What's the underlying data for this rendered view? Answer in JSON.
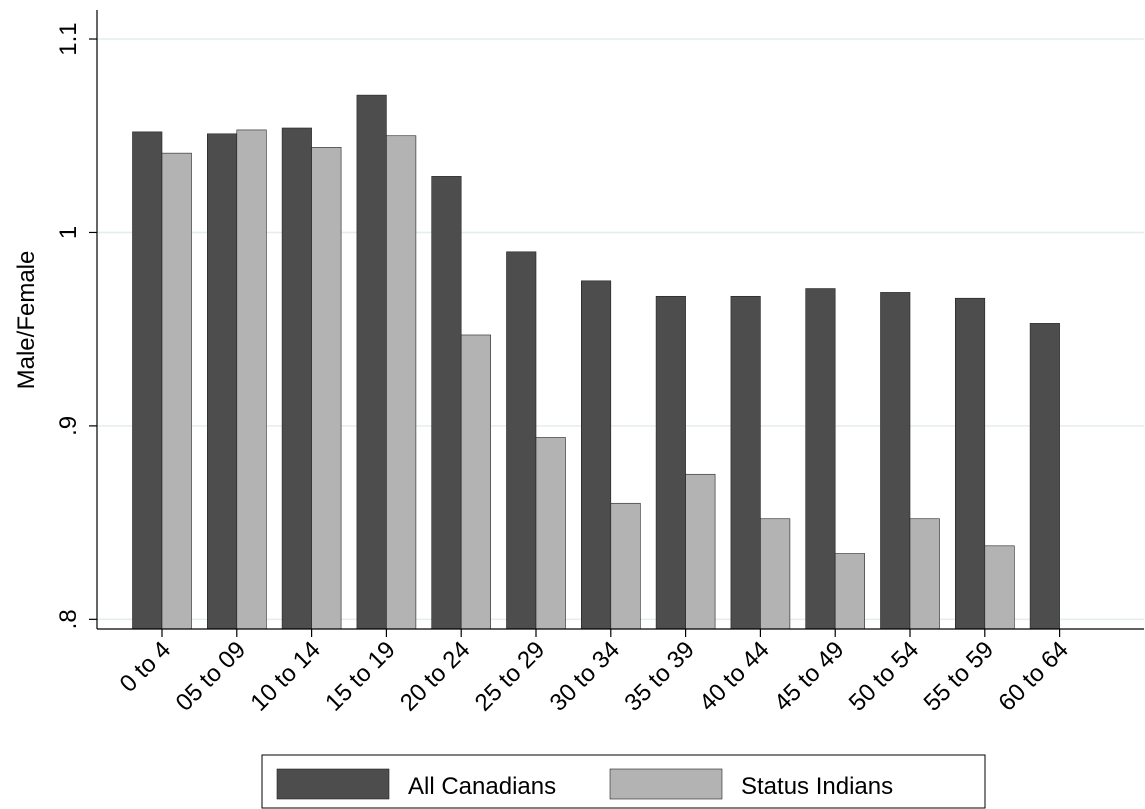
{
  "chart_data": {
    "type": "bar",
    "y_label": "Male/Female",
    "categories": [
      "0 to 4",
      "05 to 09",
      "10 to 14",
      "15 to 19",
      "20 to 24",
      "25 to 29",
      "30 to 34",
      "35 to 39",
      "40 to 44",
      "45 to 49",
      "50 to 54",
      "55 to 59",
      "60 to 64"
    ],
    "series": [
      {
        "name": "All Canadians",
        "color": "#4d4d4d",
        "values": [
          1.052,
          1.051,
          1.054,
          1.071,
          1.029,
          0.99,
          0.975,
          0.967,
          0.967,
          0.971,
          0.969,
          0.966,
          0.953
        ]
      },
      {
        "name": "Status Indians",
        "color": "#b3b3b3",
        "values": [
          1.041,
          1.053,
          1.044,
          1.05,
          0.947,
          0.894,
          0.86,
          0.875,
          0.852,
          0.834,
          0.852,
          0.838,
          null
        ]
      }
    ],
    "ylim": [
      0.795,
      1.115
    ],
    "yticks": [
      {
        "value": 0.8,
        "label": ".8"
      },
      {
        "value": 0.9,
        "label": ".9"
      },
      1,
      1.1
    ],
    "grid": true,
    "legend": "bottom"
  }
}
